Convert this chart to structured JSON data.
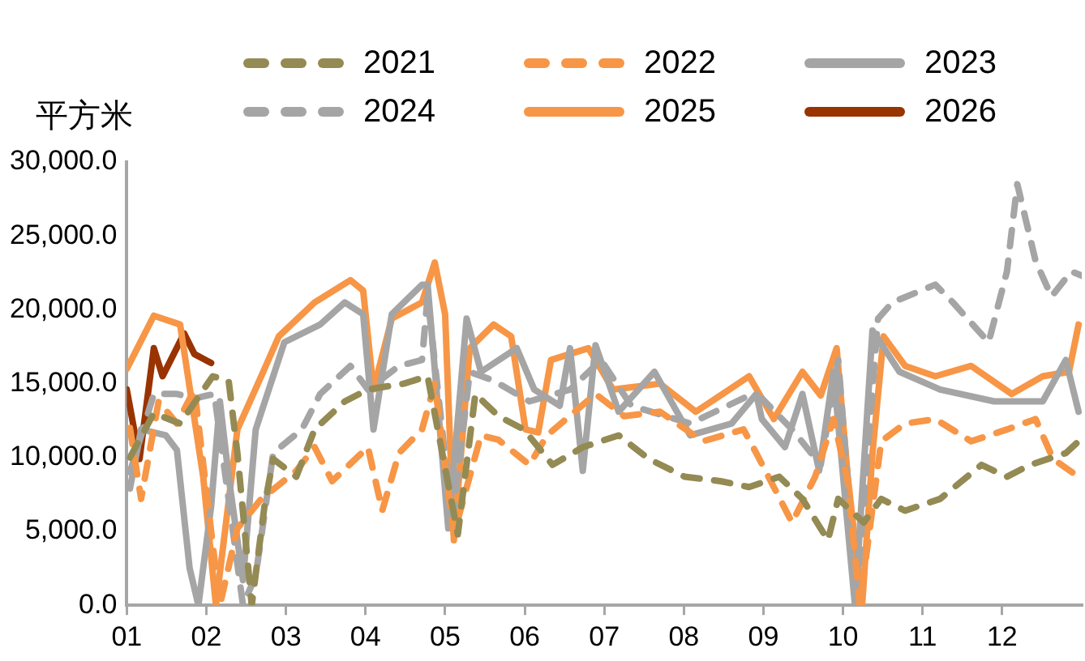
{
  "chart_data": {
    "type": "line",
    "ylabel": "平方米",
    "legend": "top",
    "grid": false,
    "marker": "none",
    "xlim": [
      1,
      13
    ],
    "xticks": [
      {
        "value": 1,
        "label": "01"
      },
      {
        "value": 2,
        "label": "02"
      },
      {
        "value": 3,
        "label": "03"
      },
      {
        "value": 4,
        "label": "04"
      },
      {
        "value": 5,
        "label": "05"
      },
      {
        "value": 6,
        "label": "06"
      },
      {
        "value": 7,
        "label": "07"
      },
      {
        "value": 8,
        "label": "08"
      },
      {
        "value": 9,
        "label": "09"
      },
      {
        "value": 10,
        "label": "10"
      },
      {
        "value": 11,
        "label": "11"
      },
      {
        "value": 12,
        "label": "12"
      }
    ],
    "ylim": [
      0,
      30000
    ],
    "yticks": [
      {
        "value": 0,
        "label": "0.0"
      },
      {
        "value": 5000,
        "label": "5,000.0"
      },
      {
        "value": 10000,
        "label": "10,000.0"
      },
      {
        "value": 15000,
        "label": "15,000.0"
      },
      {
        "value": 20000,
        "label": "20,000.0"
      },
      {
        "value": 25000,
        "label": "25,000.0"
      },
      {
        "value": 30000,
        "label": "30,000.0"
      }
    ],
    "series": [
      {
        "name": "2021",
        "color": "#948a54",
        "line_style": "dashed",
        "x": [
          1.04,
          1.34,
          1.67,
          2.08,
          2.28,
          2.39,
          2.57,
          2.73,
          2.84,
          3.13,
          3.36,
          3.74,
          4.03,
          4.48,
          4.78,
          5.16,
          5.38,
          5.67,
          5.99,
          6.35,
          6.73,
          7.18,
          7.56,
          8.01,
          8.46,
          8.82,
          9.2,
          9.49,
          9.81,
          9.94,
          10.26,
          10.48,
          10.78,
          11.22,
          11.74,
          12.06,
          12.35,
          12.8,
          12.96
        ],
        "values": [
          10000,
          13000,
          12300,
          15500,
          15200,
          10300,
          0,
          6700,
          9900,
          8700,
          11900,
          13800,
          14600,
          15000,
          15500,
          4800,
          14300,
          12800,
          11900,
          9500,
          10700,
          11500,
          9900,
          8700,
          8400,
          8000,
          8700,
          7200,
          4400,
          7200,
          5600,
          7200,
          6400,
          7200,
          9500,
          8700,
          9500,
          10300,
          11100
        ]
      },
      {
        "name": "2022",
        "color": "#f79646",
        "line_style": "dashed",
        "x": [
          1.04,
          1.18,
          1.4,
          1.63,
          1.85,
          2.17,
          2.39,
          2.69,
          3.13,
          3.36,
          3.58,
          4.03,
          4.21,
          4.42,
          4.71,
          4.87,
          5.11,
          5.45,
          5.67,
          6.06,
          6.28,
          6.89,
          7.25,
          7.7,
          8.24,
          8.75,
          8.91,
          9.36,
          9.65,
          9.88,
          10.06,
          10.21,
          10.48,
          10.78,
          11.16,
          11.61,
          12.06,
          12.42,
          12.64,
          12.96
        ],
        "values": [
          12000,
          7200,
          13800,
          12300,
          14600,
          0,
          5200,
          7200,
          9100,
          10700,
          8400,
          10700,
          6400,
          10300,
          11900,
          15000,
          4800,
          11500,
          11200,
          9500,
          11500,
          14300,
          12800,
          13100,
          11100,
          11900,
          10300,
          5600,
          8700,
          12600,
          8400,
          0,
          11100,
          12300,
          12600,
          11100,
          11900,
          12600,
          9900,
          8700
        ]
      },
      {
        "name": "2023",
        "color": "#a5a5a5",
        "line_style": "solid",
        "x": [
          1.04,
          1.18,
          1.49,
          1.63,
          1.79,
          1.9,
          2.06,
          2.17,
          2.28,
          2.46,
          2.62,
          2.98,
          3.43,
          3.74,
          3.97,
          4.1,
          4.33,
          4.71,
          4.78,
          5.04,
          5.27,
          5.45,
          5.9,
          6.12,
          6.44,
          6.57,
          6.73,
          6.89,
          7.18,
          7.63,
          8.08,
          8.6,
          8.91,
          8.98,
          9.27,
          9.49,
          9.7,
          9.88,
          10.15,
          10.37,
          10.71,
          11.22,
          11.9,
          12.51,
          12.8,
          12.96
        ],
        "values": [
          7900,
          11900,
          11500,
          10500,
          2500,
          0,
          6700,
          13800,
          8700,
          1700,
          11900,
          17800,
          19000,
          20500,
          19700,
          11900,
          19700,
          21700,
          21700,
          5200,
          19400,
          15800,
          17400,
          14600,
          13500,
          17400,
          9100,
          17600,
          13100,
          15800,
          11500,
          12300,
          14300,
          12600,
          10700,
          14300,
          9100,
          15800,
          0,
          18600,
          15800,
          14600,
          13800,
          13800,
          16600,
          13100
        ]
      },
      {
        "name": "2024",
        "color": "#a5a5a5",
        "line_style": "dashed",
        "x": [
          1.04,
          1.34,
          1.63,
          1.85,
          2.1,
          2.46,
          2.62,
          2.84,
          3.2,
          3.43,
          3.81,
          4.03,
          4.42,
          4.71,
          4.78,
          5.09,
          5.31,
          5.61,
          6.06,
          6.57,
          6.96,
          7.34,
          8.08,
          8.82,
          8.98,
          9.36,
          9.72,
          9.94,
          10.17,
          10.44,
          10.62,
          11.16,
          11.38,
          11.83,
          12.06,
          12.19,
          12.42,
          12.62,
          12.87,
          13.0
        ],
        "values": [
          9000,
          14300,
          14300,
          14000,
          14300,
          0,
          2000,
          10300,
          11900,
          14300,
          16200,
          14600,
          16200,
          16600,
          20900,
          5600,
          15800,
          15200,
          13800,
          14600,
          16600,
          13500,
          12300,
          14200,
          14000,
          11900,
          9500,
          16600,
          800,
          19400,
          20500,
          21700,
          20500,
          17800,
          22600,
          28500,
          23300,
          20900,
          22600,
          22300
        ]
      },
      {
        "name": "2025",
        "color": "#f79646",
        "line_style": "solid",
        "x": [
          1.0,
          1.34,
          1.67,
          1.96,
          2.12,
          2.39,
          2.69,
          2.91,
          3.36,
          3.81,
          3.97,
          4.1,
          4.33,
          4.71,
          4.87,
          5.0,
          5.11,
          5.31,
          5.61,
          5.83,
          6.01,
          6.17,
          6.33,
          6.8,
          7.11,
          7.7,
          8.15,
          8.46,
          8.82,
          9.13,
          9.49,
          9.72,
          9.92,
          10.06,
          10.24,
          10.37,
          10.51,
          10.78,
          11.16,
          11.61,
          12.12,
          12.51,
          12.84,
          12.96
        ],
        "values": [
          16000,
          19600,
          19000,
          8700,
          0,
          11900,
          15500,
          18200,
          20500,
          22000,
          21300,
          14600,
          19400,
          20500,
          23200,
          19700,
          4400,
          17400,
          19000,
          18200,
          11900,
          11700,
          16600,
          17400,
          14600,
          15000,
          13100,
          14200,
          15500,
          12600,
          15800,
          14200,
          17400,
          8700,
          0,
          10300,
          18200,
          16200,
          15500,
          16200,
          14300,
          15500,
          15800,
          19000
        ]
      },
      {
        "name": "2026",
        "color": "#993300",
        "line_style": "solid",
        "x": [
          1.0,
          1.16,
          1.34,
          1.45,
          1.72,
          1.85,
          2.06
        ],
        "values": [
          14600,
          9900,
          17400,
          15500,
          18400,
          17000,
          16400
        ]
      }
    ]
  }
}
